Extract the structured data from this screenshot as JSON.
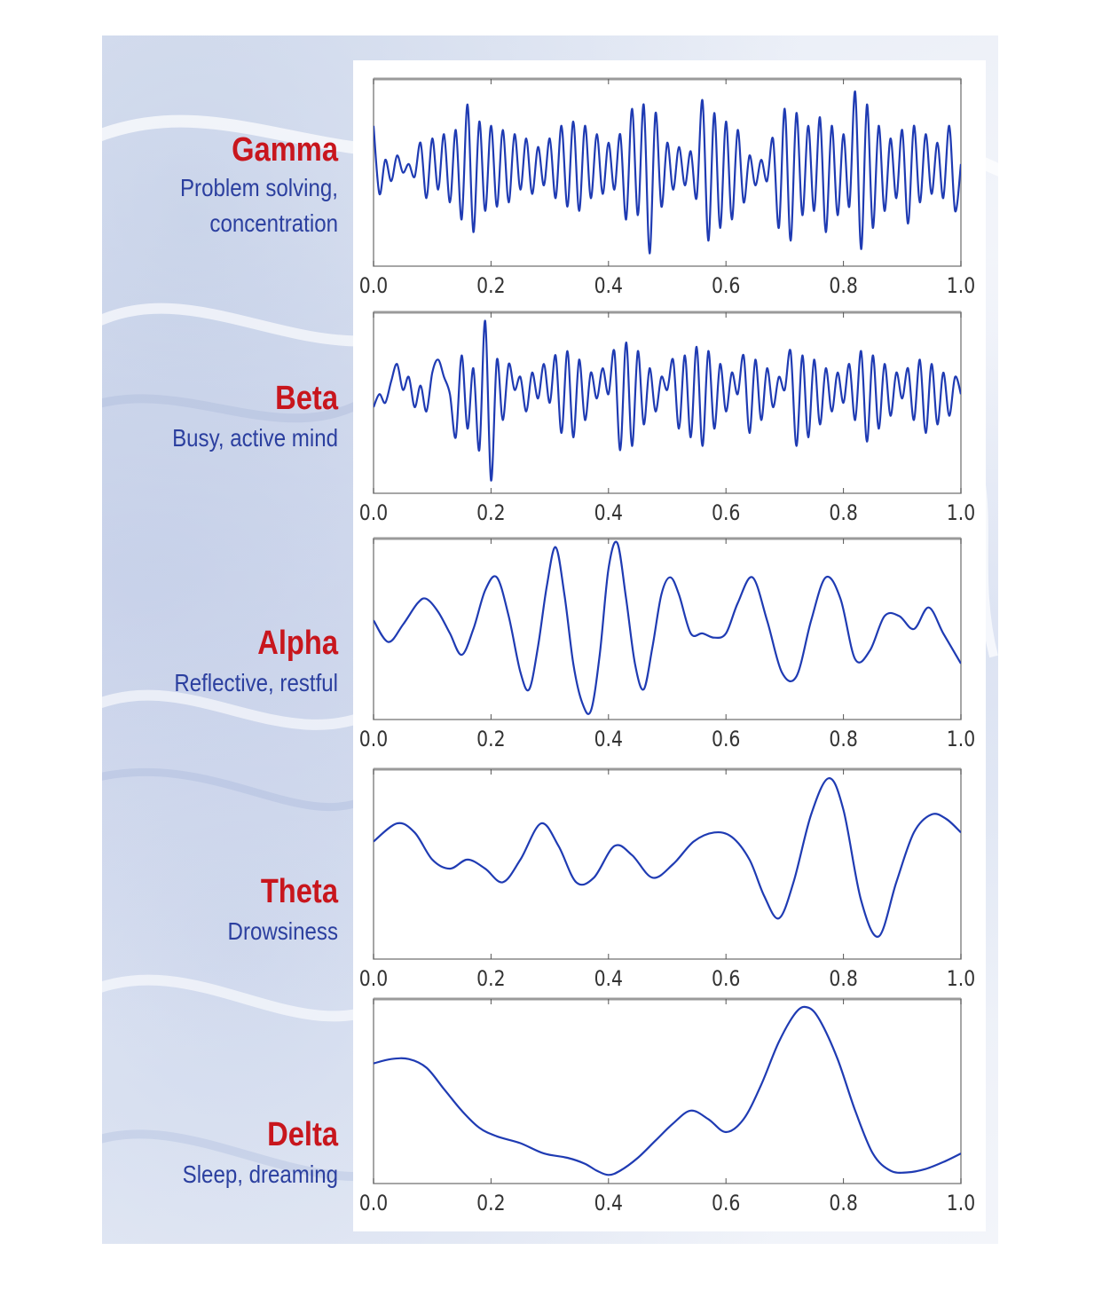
{
  "colors": {
    "wave_line": "#1f3bb3",
    "wave_name": "#c8161d",
    "wave_desc": "#2b3f9f",
    "axis_frame": "#888888"
  },
  "waves": [
    {
      "name": "Gamma",
      "description": [
        "Problem solving,",
        "concentration"
      ]
    },
    {
      "name": "Beta",
      "description": [
        "Busy, active mind"
      ]
    },
    {
      "name": "Alpha",
      "description": [
        "Reflective, restful"
      ]
    },
    {
      "name": "Theta",
      "description": [
        "Drowsiness"
      ]
    },
    {
      "name": "Delta",
      "description": [
        "Sleep, dreaming"
      ]
    }
  ],
  "chart_data": [
    {
      "type": "line",
      "series": [
        {
          "name": "Gamma"
        }
      ],
      "xlim": [
        0.0,
        1.0
      ],
      "x_ticks": [
        "0.0",
        "0.2",
        "0.4",
        "0.6",
        "0.8",
        "1.0"
      ],
      "y_ticks": "none",
      "x": [
        0.0,
        0.01,
        0.02,
        0.03,
        0.04,
        0.05,
        0.06,
        0.07,
        0.08,
        0.09,
        0.1,
        0.11,
        0.12,
        0.13,
        0.14,
        0.15,
        0.16,
        0.17,
        0.18,
        0.19,
        0.2,
        0.21,
        0.22,
        0.23,
        0.24,
        0.25,
        0.26,
        0.27,
        0.28,
        0.29,
        0.3,
        0.31,
        0.32,
        0.33,
        0.34,
        0.35,
        0.36,
        0.37,
        0.38,
        0.39,
        0.4,
        0.41,
        0.42,
        0.43,
        0.44,
        0.45,
        0.46,
        0.47,
        0.48,
        0.49,
        0.5,
        0.51,
        0.52,
        0.53,
        0.54,
        0.55,
        0.56,
        0.57,
        0.58,
        0.59,
        0.6,
        0.61,
        0.62,
        0.63,
        0.64,
        0.65,
        0.66,
        0.67,
        0.68,
        0.69,
        0.7,
        0.71,
        0.72,
        0.73,
        0.74,
        0.75,
        0.76,
        0.77,
        0.78,
        0.79,
        0.8,
        0.81,
        0.82,
        0.83,
        0.84,
        0.85,
        0.86,
        0.87,
        0.88,
        0.89,
        0.9,
        0.91,
        0.92,
        0.93,
        0.94,
        0.95,
        0.96,
        0.97,
        0.98,
        0.99,
        1.0
      ],
      "values": [
        0.55,
        -0.25,
        0.15,
        -0.1,
        0.2,
        0.0,
        0.1,
        -0.05,
        0.35,
        -0.3,
        0.4,
        -0.2,
        0.45,
        -0.35,
        0.5,
        -0.55,
        0.8,
        -0.7,
        0.6,
        -0.45,
        0.55,
        -0.4,
        0.5,
        -0.35,
        0.45,
        -0.2,
        0.4,
        -0.25,
        0.3,
        -0.15,
        0.4,
        -0.3,
        0.55,
        -0.4,
        0.6,
        -0.45,
        0.55,
        -0.3,
        0.45,
        -0.25,
        0.35,
        -0.2,
        0.45,
        -0.55,
        0.75,
        -0.5,
        0.8,
        -0.95,
        0.7,
        -0.4,
        0.35,
        -0.2,
        0.3,
        -0.15,
        0.25,
        -0.3,
        0.85,
        -0.8,
        0.7,
        -0.65,
        0.6,
        -0.55,
        0.5,
        -0.35,
        0.2,
        -0.15,
        0.15,
        -0.1,
        0.4,
        -0.65,
        0.75,
        -0.8,
        0.7,
        -0.5,
        0.55,
        -0.45,
        0.65,
        -0.7,
        0.55,
        -0.5,
        0.45,
        -0.4,
        0.95,
        -0.9,
        0.8,
        -0.65,
        0.55,
        -0.45,
        0.4,
        -0.3,
        0.5,
        -0.6,
        0.55,
        -0.35,
        0.45,
        -0.25,
        0.35,
        -0.3,
        0.55,
        -0.45,
        0.1
      ]
    },
    {
      "type": "line",
      "series": [
        {
          "name": "Beta"
        }
      ],
      "xlim": [
        0.0,
        1.0
      ],
      "x_ticks": [
        "0.0",
        "0.2",
        "0.4",
        "0.6",
        "0.8",
        "1.0"
      ],
      "y_ticks": "none",
      "x": [
        0.0,
        0.01,
        0.02,
        0.03,
        0.04,
        0.05,
        0.06,
        0.07,
        0.08,
        0.09,
        0.1,
        0.11,
        0.12,
        0.13,
        0.14,
        0.15,
        0.16,
        0.17,
        0.18,
        0.19,
        0.2,
        0.21,
        0.22,
        0.23,
        0.24,
        0.25,
        0.26,
        0.27,
        0.28,
        0.29,
        0.3,
        0.31,
        0.32,
        0.33,
        0.34,
        0.35,
        0.36,
        0.37,
        0.38,
        0.39,
        0.4,
        0.41,
        0.42,
        0.43,
        0.44,
        0.45,
        0.46,
        0.47,
        0.48,
        0.49,
        0.5,
        0.51,
        0.52,
        0.53,
        0.54,
        0.55,
        0.56,
        0.57,
        0.58,
        0.59,
        0.6,
        0.61,
        0.62,
        0.63,
        0.64,
        0.65,
        0.66,
        0.67,
        0.68,
        0.69,
        0.7,
        0.71,
        0.72,
        0.73,
        0.74,
        0.75,
        0.76,
        0.77,
        0.78,
        0.79,
        0.8,
        0.81,
        0.82,
        0.83,
        0.84,
        0.85,
        0.86,
        0.87,
        0.88,
        0.89,
        0.9,
        0.91,
        0.92,
        0.93,
        0.94,
        0.95,
        0.96,
        0.97,
        0.98,
        0.99,
        1.0
      ],
      "values": [
        -0.05,
        0.1,
        0.0,
        0.25,
        0.45,
        0.15,
        0.3,
        -0.05,
        0.2,
        -0.1,
        0.35,
        0.5,
        0.3,
        0.1,
        -0.4,
        0.55,
        -0.3,
        0.4,
        -0.55,
        0.95,
        -0.9,
        0.5,
        -0.2,
        0.45,
        0.15,
        0.3,
        -0.1,
        0.35,
        0.05,
        0.45,
        0.0,
        0.55,
        -0.35,
        0.6,
        -0.4,
        0.5,
        -0.2,
        0.35,
        0.05,
        0.4,
        0.1,
        0.6,
        -0.55,
        0.7,
        -0.5,
        0.6,
        -0.25,
        0.4,
        -0.1,
        0.3,
        0.15,
        0.5,
        -0.3,
        0.55,
        -0.4,
        0.65,
        -0.5,
        0.6,
        -0.3,
        0.45,
        -0.1,
        0.35,
        0.1,
        0.55,
        -0.35,
        0.5,
        -0.2,
        0.4,
        -0.05,
        0.3,
        0.15,
        0.6,
        -0.5,
        0.55,
        -0.4,
        0.5,
        -0.25,
        0.4,
        -0.1,
        0.35,
        0.0,
        0.45,
        -0.2,
        0.6,
        -0.45,
        0.55,
        -0.3,
        0.45,
        -0.15,
        0.35,
        0.05,
        0.4,
        -0.2,
        0.5,
        -0.35,
        0.45,
        -0.25,
        0.35,
        -0.15,
        0.3,
        0.1
      ]
    },
    {
      "type": "line",
      "series": [
        {
          "name": "Alpha"
        }
      ],
      "xlim": [
        0.0,
        1.0
      ],
      "x_ticks": [
        "0.0",
        "0.2",
        "0.4",
        "0.6",
        "0.8",
        "1.0"
      ],
      "y_ticks": "none",
      "x": [
        0.0,
        0.025,
        0.05,
        0.075,
        0.09,
        0.11,
        0.13,
        0.15,
        0.17,
        0.19,
        0.21,
        0.23,
        0.25,
        0.265,
        0.28,
        0.295,
        0.31,
        0.325,
        0.34,
        0.355,
        0.37,
        0.385,
        0.4,
        0.415,
        0.43,
        0.445,
        0.46,
        0.475,
        0.49,
        0.505,
        0.52,
        0.54,
        0.56,
        0.58,
        0.6,
        0.62,
        0.645,
        0.67,
        0.695,
        0.72,
        0.745,
        0.77,
        0.795,
        0.82,
        0.845,
        0.87,
        0.895,
        0.92,
        0.945,
        0.97,
        1.0
      ],
      "values": [
        0.1,
        -0.15,
        0.05,
        0.3,
        0.35,
        0.2,
        -0.05,
        -0.3,
        0.0,
        0.45,
        0.6,
        0.15,
        -0.5,
        -0.7,
        -0.2,
        0.5,
        0.95,
        0.4,
        -0.4,
        -0.85,
        -0.95,
        -0.3,
        0.7,
        1.0,
        0.35,
        -0.4,
        -0.7,
        -0.2,
        0.4,
        0.6,
        0.4,
        -0.05,
        -0.05,
        -0.1,
        -0.05,
        0.3,
        0.6,
        0.1,
        -0.5,
        -0.55,
        0.1,
        0.6,
        0.35,
        -0.35,
        -0.25,
        0.15,
        0.15,
        0.0,
        0.25,
        -0.05,
        -0.4
      ]
    },
    {
      "type": "line",
      "series": [
        {
          "name": "Theta"
        }
      ],
      "xlim": [
        0.0,
        1.0
      ],
      "x_ticks": [
        "0.0",
        "0.2",
        "0.4",
        "0.6",
        "0.8",
        "1.0"
      ],
      "y_ticks": "none",
      "x": [
        0.0,
        0.04,
        0.07,
        0.1,
        0.13,
        0.16,
        0.19,
        0.22,
        0.25,
        0.285,
        0.315,
        0.345,
        0.375,
        0.41,
        0.44,
        0.475,
        0.51,
        0.545,
        0.58,
        0.61,
        0.64,
        0.665,
        0.69,
        0.715,
        0.745,
        0.775,
        0.8,
        0.83,
        0.86,
        0.89,
        0.92,
        0.95,
        0.975,
        1.0
      ],
      "values": [
        0.25,
        0.45,
        0.35,
        0.05,
        -0.05,
        0.05,
        -0.05,
        -0.2,
        0.05,
        0.45,
        0.2,
        -0.2,
        -0.15,
        0.2,
        0.1,
        -0.15,
        0.0,
        0.25,
        0.35,
        0.3,
        0.05,
        -0.35,
        -0.6,
        -0.2,
        0.55,
        0.95,
        0.6,
        -0.4,
        -0.8,
        -0.2,
        0.35,
        0.55,
        0.5,
        0.35
      ]
    },
    {
      "type": "line",
      "series": [
        {
          "name": "Delta"
        }
      ],
      "xlim": [
        0.0,
        1.0
      ],
      "x_ticks": [
        "0.0",
        "0.2",
        "0.4",
        "0.6",
        "0.8",
        "1.0"
      ],
      "y_ticks": "none",
      "x": [
        0.0,
        0.03,
        0.06,
        0.09,
        0.12,
        0.15,
        0.18,
        0.21,
        0.25,
        0.29,
        0.33,
        0.36,
        0.38,
        0.4,
        0.42,
        0.45,
        0.48,
        0.51,
        0.54,
        0.57,
        0.6,
        0.63,
        0.66,
        0.69,
        0.72,
        0.74,
        0.76,
        0.79,
        0.82,
        0.85,
        0.88,
        0.91,
        0.94,
        0.97,
        1.0
      ],
      "values": [
        0.35,
        0.4,
        0.4,
        0.3,
        0.05,
        -0.2,
        -0.4,
        -0.5,
        -0.58,
        -0.7,
        -0.75,
        -0.82,
        -0.9,
        -0.95,
        -0.9,
        -0.75,
        -0.55,
        -0.35,
        -0.2,
        -0.3,
        -0.45,
        -0.3,
        0.1,
        0.6,
        0.95,
        1.0,
        0.85,
        0.4,
        -0.2,
        -0.7,
        -0.9,
        -0.92,
        -0.88,
        -0.8,
        -0.7
      ]
    }
  ]
}
